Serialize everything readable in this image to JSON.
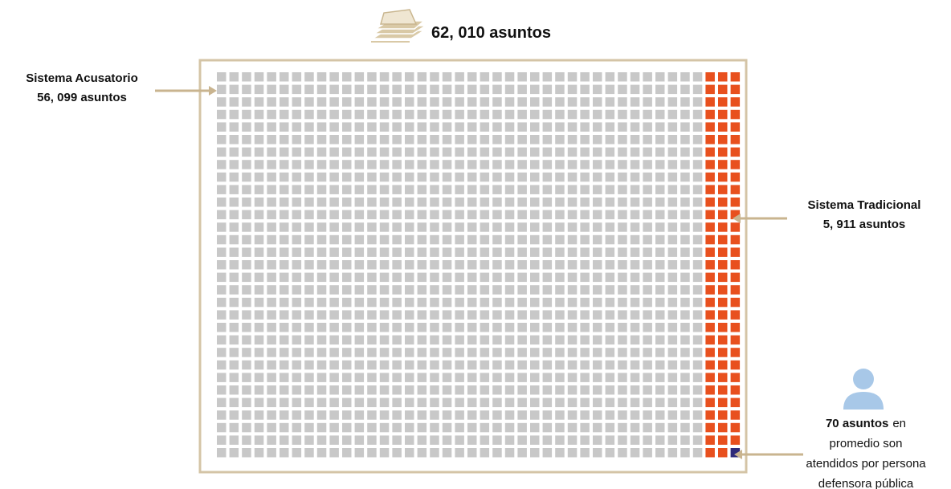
{
  "total": {
    "label": "62, 010 asuntos"
  },
  "acusatorio": {
    "title": "Sistema Acusatorio",
    "value": "56, 099 asuntos"
  },
  "tradicional": {
    "title": "Sistema Tradicional",
    "value": "5, 911 asuntos"
  },
  "note": {
    "bold": "70 asuntos",
    "lines": [
      "en",
      "promedio son",
      "atendidos por persona",
      "defensora pública"
    ]
  }
}
